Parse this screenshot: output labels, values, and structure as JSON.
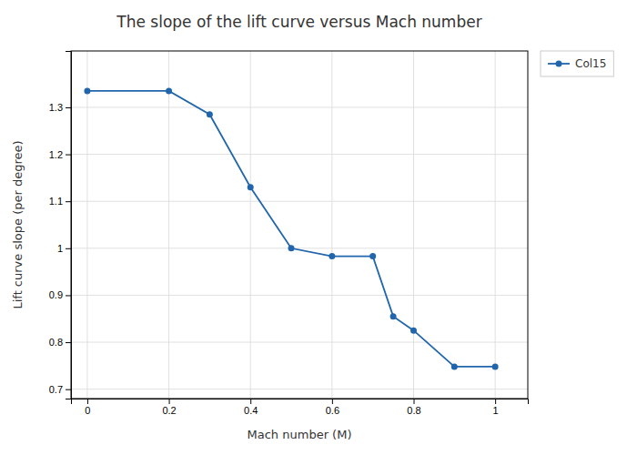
{
  "chart_data": {
    "type": "line",
    "title": "The slope of the lift curve versus Mach number",
    "x_label": "Mach number (M)",
    "y_label": "Lift curve slope (per degree)",
    "x": [
      0,
      0.2,
      0.3,
      0.4,
      0.5,
      0.6,
      0.7,
      0.75,
      0.8,
      0.9,
      1
    ],
    "series": [
      {
        "name": "Col15",
        "color": "#2166ac",
        "marker": "circle",
        "line_style": "solid",
        "values": [
          1.335,
          1.335,
          1.285,
          1.13,
          1.0,
          0.983,
          0.983,
          0.855,
          0.825,
          0.748,
          0.748
        ]
      }
    ],
    "xlim": [
      -0.04,
      1.08
    ],
    "ylim": [
      0.68,
      1.42
    ],
    "xticks": [
      0,
      0.2,
      0.4,
      0.6,
      0.8,
      1
    ],
    "yticks": [
      0.7,
      0.8,
      0.9,
      1,
      1.1,
      1.2,
      1.3
    ],
    "grid": true,
    "legend": "right"
  }
}
